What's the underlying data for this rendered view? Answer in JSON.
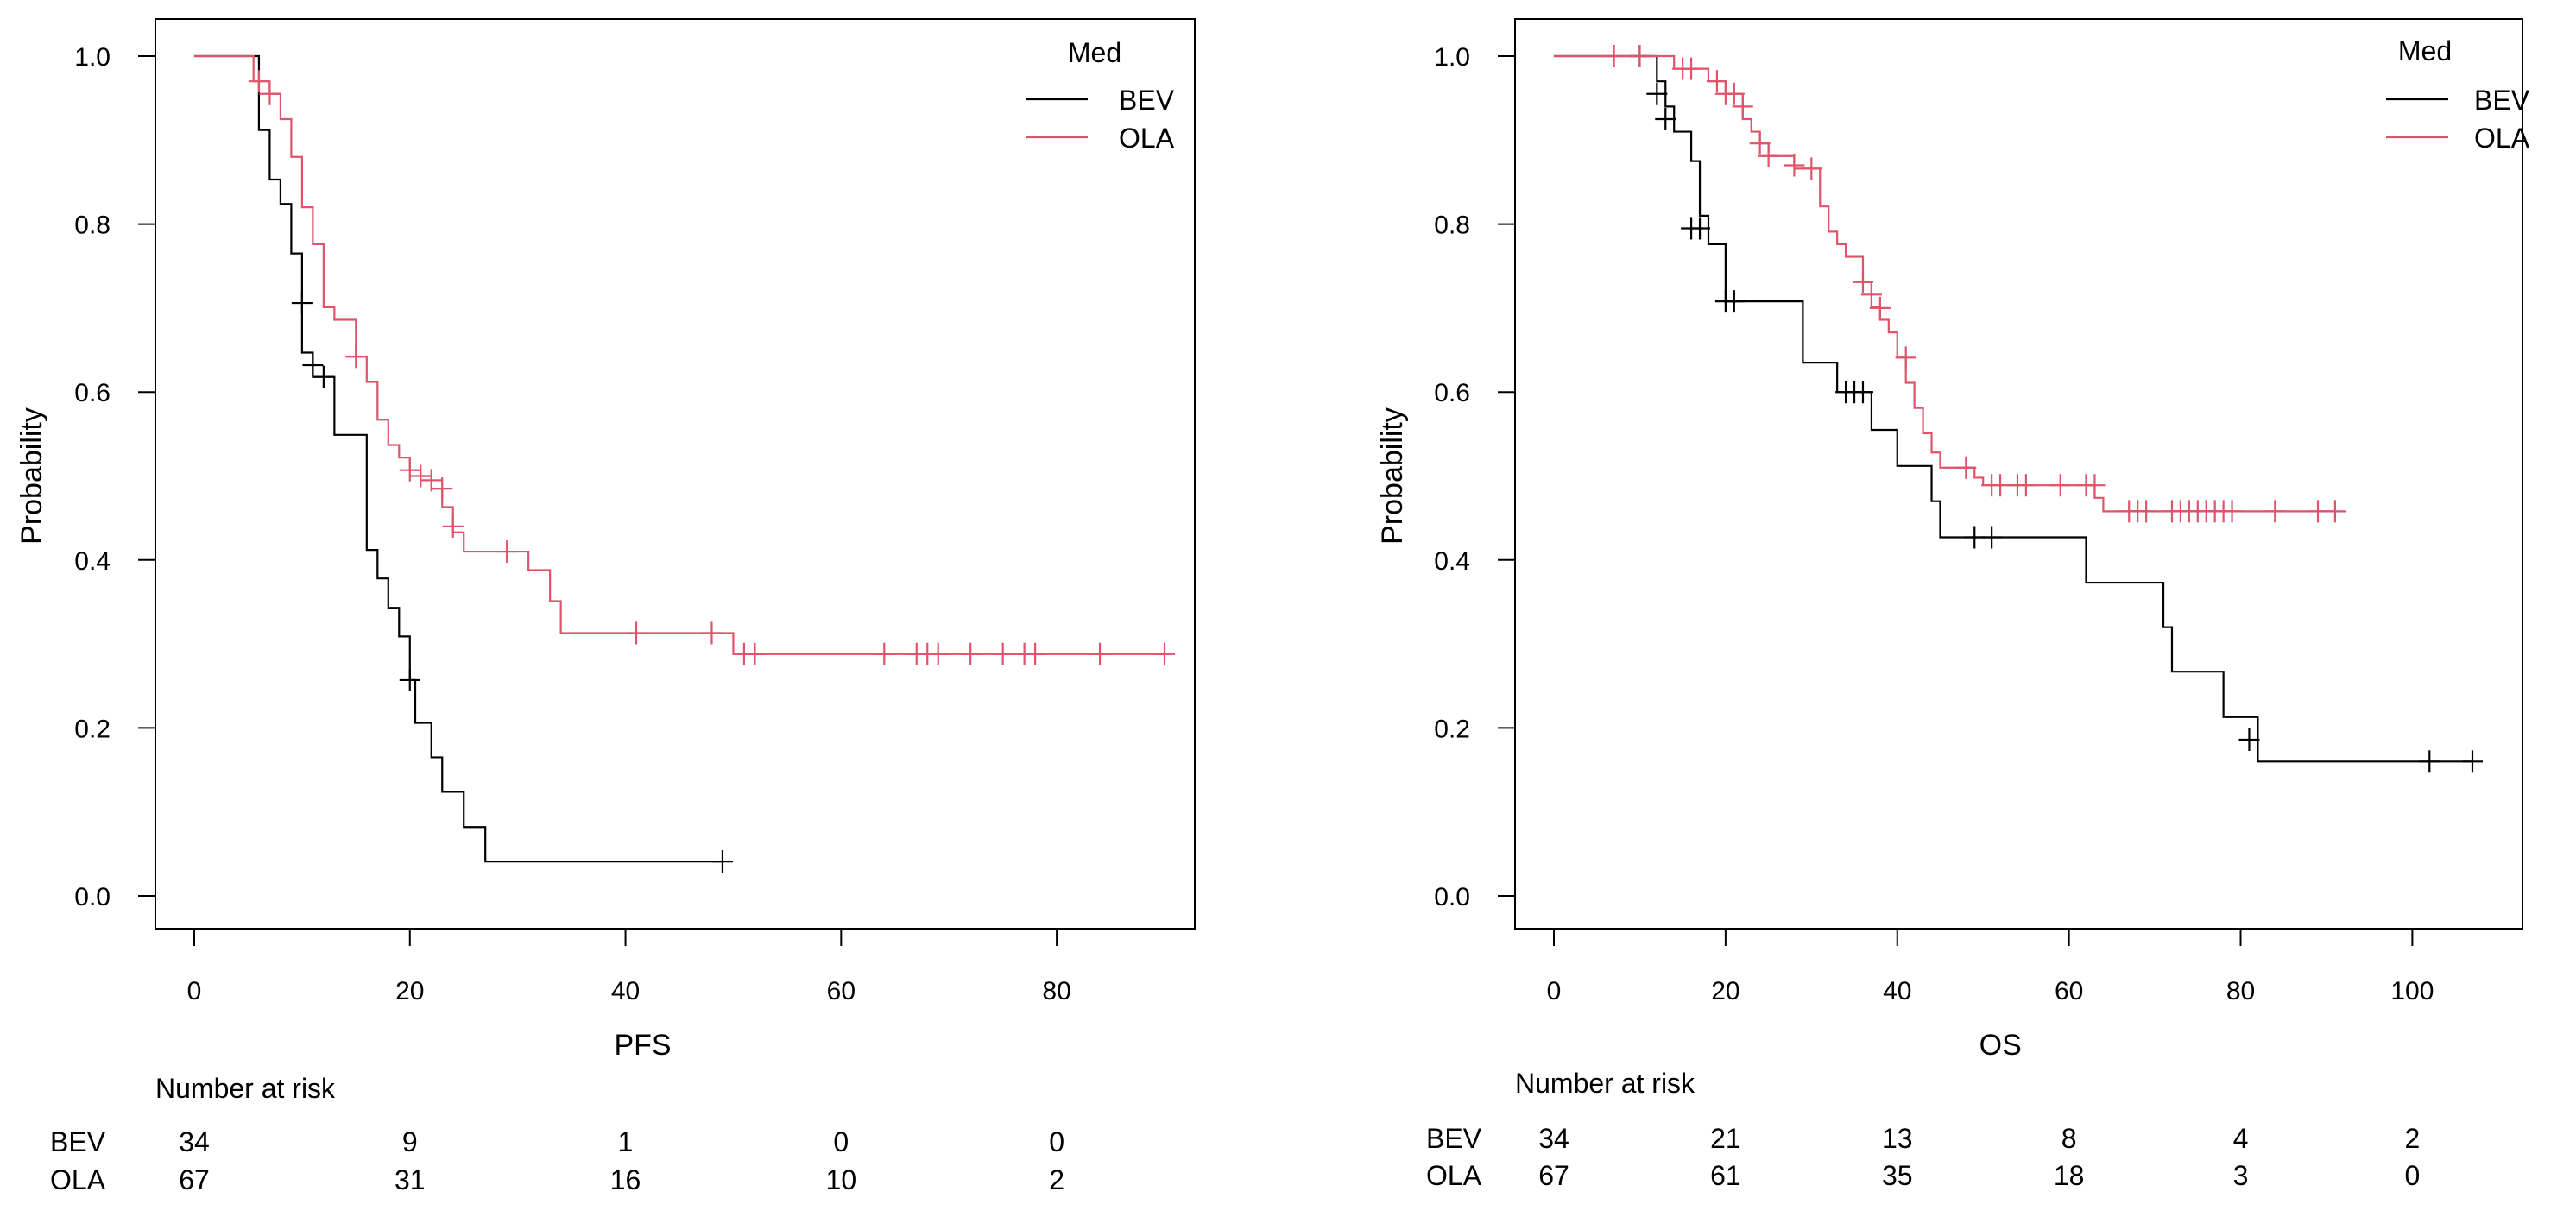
{
  "colors": {
    "BEV": "#000000",
    "OLA": "#DF536B"
  },
  "chart_data": [
    {
      "type": "line",
      "subtype": "kaplan-meier",
      "title": "",
      "xlabel": "PFS",
      "ylabel": "Probability",
      "xlim": [
        0,
        90
      ],
      "ylim": [
        0,
        1
      ],
      "xticks": [
        0,
        20,
        40,
        60,
        80
      ],
      "yticks": [
        0.0,
        0.2,
        0.4,
        0.6,
        0.8,
        1.0
      ],
      "xtick_labels": [
        "0",
        "20",
        "40",
        "60",
        "80"
      ],
      "ytick_labels": [
        "0.0",
        "0.2",
        "0.4",
        "0.6",
        "0.8",
        "1.0"
      ],
      "grid": false,
      "legend": {
        "title": "Med",
        "placement": "top-right"
      },
      "series": [
        {
          "name": "BEV",
          "steps": [
            [
              0,
              1.0
            ],
            [
              5.5,
              1.0
            ],
            [
              6,
              0.912
            ],
            [
              7,
              0.853
            ],
            [
              8,
              0.824
            ],
            [
              9,
              0.765
            ],
            [
              10,
              0.647
            ],
            [
              11,
              0.618
            ],
            [
              13,
              0.549
            ],
            [
              16,
              0.412
            ],
            [
              17,
              0.378
            ],
            [
              18,
              0.343
            ],
            [
              19,
              0.309
            ],
            [
              20,
              0.257
            ],
            [
              20.5,
              0.206
            ],
            [
              22,
              0.165
            ],
            [
              23,
              0.124
            ],
            [
              25,
              0.082
            ],
            [
              27,
              0.041
            ],
            [
              49,
              0.041
            ]
          ],
          "censor": [
            [
              10,
              0.706
            ],
            [
              11,
              0.632
            ],
            [
              12,
              0.618
            ],
            [
              20,
              0.257
            ],
            [
              49,
              0.041
            ]
          ]
        },
        {
          "name": "OLA",
          "steps": [
            [
              0,
              1.0
            ],
            [
              5,
              1.0
            ],
            [
              5.5,
              0.97
            ],
            [
              7,
              0.955
            ],
            [
              8,
              0.925
            ],
            [
              9,
              0.88
            ],
            [
              10,
              0.82
            ],
            [
              11,
              0.776
            ],
            [
              12,
              0.701
            ],
            [
              13,
              0.686
            ],
            [
              15,
              0.642
            ],
            [
              16,
              0.612
            ],
            [
              17,
              0.567
            ],
            [
              18,
              0.537
            ],
            [
              19,
              0.522
            ],
            [
              20,
              0.507
            ],
            [
              21,
              0.5
            ],
            [
              22,
              0.485
            ],
            [
              23,
              0.463
            ],
            [
              24,
              0.433
            ],
            [
              25,
              0.41
            ],
            [
              30,
              0.41
            ],
            [
              31,
              0.388
            ],
            [
              33,
              0.351
            ],
            [
              34,
              0.313
            ],
            [
              50,
              0.288
            ],
            [
              90,
              0.288
            ]
          ],
          "censor": [
            [
              6,
              0.97
            ],
            [
              7,
              0.955
            ],
            [
              15,
              0.642
            ],
            [
              20,
              0.507
            ],
            [
              21,
              0.5
            ],
            [
              22,
              0.495
            ],
            [
              23,
              0.485
            ],
            [
              24,
              0.44
            ],
            [
              29,
              0.41
            ],
            [
              41,
              0.313
            ],
            [
              48,
              0.313
            ],
            [
              51,
              0.288
            ],
            [
              52,
              0.288
            ],
            [
              64,
              0.288
            ],
            [
              67,
              0.288
            ],
            [
              68,
              0.288
            ],
            [
              69,
              0.288
            ],
            [
              72,
              0.288
            ],
            [
              75,
              0.288
            ],
            [
              77,
              0.288
            ],
            [
              78,
              0.288
            ],
            [
              84,
              0.288
            ],
            [
              90,
              0.288
            ]
          ]
        }
      ],
      "risk_table": {
        "title": "Number at risk",
        "times": [
          0,
          20,
          40,
          60,
          80
        ],
        "rows": [
          {
            "name": "BEV",
            "values": [
              "34",
              "9",
              "1",
              "0",
              "0"
            ]
          },
          {
            "name": "OLA",
            "values": [
              "67",
              "31",
              "16",
              "10",
              "2"
            ]
          }
        ]
      }
    },
    {
      "type": "line",
      "subtype": "kaplan-meier",
      "title": "",
      "xlabel": "OS",
      "ylabel": "Probability",
      "xlim": [
        0,
        107
      ],
      "ylim": [
        0,
        1
      ],
      "xticks": [
        0,
        20,
        40,
        60,
        80,
        100
      ],
      "yticks": [
        0.0,
        0.2,
        0.4,
        0.6,
        0.8,
        1.0
      ],
      "xtick_labels": [
        "0",
        "20",
        "40",
        "60",
        "80",
        "100"
      ],
      "ytick_labels": [
        "0.0",
        "0.2",
        "0.4",
        "0.6",
        "0.8",
        "1.0"
      ],
      "grid": false,
      "legend": {
        "title": "Med",
        "placement": "top-right"
      },
      "series": [
        {
          "name": "BEV",
          "steps": [
            [
              0,
              1.0
            ],
            [
              11,
              1.0
            ],
            [
              12,
              0.97
            ],
            [
              13,
              0.94
            ],
            [
              14,
              0.91
            ],
            [
              16,
              0.875
            ],
            [
              17,
              0.81
            ],
            [
              18,
              0.776
            ],
            [
              20,
              0.708
            ],
            [
              29,
              0.635
            ],
            [
              33,
              0.6
            ],
            [
              37,
              0.555
            ],
            [
              40,
              0.512
            ],
            [
              44,
              0.47
            ],
            [
              45,
              0.427
            ],
            [
              62,
              0.373
            ],
            [
              71,
              0.32
            ],
            [
              72,
              0.267
            ],
            [
              78,
              0.213
            ],
            [
              82,
              0.16
            ],
            [
              107,
              0.16
            ]
          ],
          "censor": [
            [
              10,
              1.0
            ],
            [
              12,
              0.955
            ],
            [
              13,
              0.925
            ],
            [
              16,
              0.795
            ],
            [
              17,
              0.795
            ],
            [
              20,
              0.708
            ],
            [
              21,
              0.708
            ],
            [
              34,
              0.6
            ],
            [
              35,
              0.6
            ],
            [
              36,
              0.6
            ],
            [
              49,
              0.427
            ],
            [
              51,
              0.427
            ],
            [
              81,
              0.186
            ],
            [
              102,
              0.16
            ],
            [
              107,
              0.16
            ]
          ]
        },
        {
          "name": "OLA",
          "steps": [
            [
              0,
              1.0
            ],
            [
              12,
              1.0
            ],
            [
              14,
              0.985
            ],
            [
              18,
              0.97
            ],
            [
              20,
              0.955
            ],
            [
              22,
              0.925
            ],
            [
              23,
              0.91
            ],
            [
              24,
              0.896
            ],
            [
              25,
              0.881
            ],
            [
              28,
              0.866
            ],
            [
              31,
              0.821
            ],
            [
              32,
              0.791
            ],
            [
              33,
              0.776
            ],
            [
              34,
              0.761
            ],
            [
              36,
              0.731
            ],
            [
              37,
              0.701
            ],
            [
              38,
              0.686
            ],
            [
              39,
              0.671
            ],
            [
              40,
              0.641
            ],
            [
              41,
              0.611
            ],
            [
              42,
              0.581
            ],
            [
              43,
              0.551
            ],
            [
              44,
              0.528
            ],
            [
              45,
              0.51
            ],
            [
              49,
              0.498
            ],
            [
              50,
              0.489
            ],
            [
              63,
              0.474
            ],
            [
              64,
              0.458
            ],
            [
              91,
              0.458
            ]
          ],
          "censor": [
            [
              7,
              1.0
            ],
            [
              10,
              1.0
            ],
            [
              15,
              0.985
            ],
            [
              16,
              0.985
            ],
            [
              19,
              0.97
            ],
            [
              20,
              0.955
            ],
            [
              21,
              0.955
            ],
            [
              22,
              0.94
            ],
            [
              24,
              0.896
            ],
            [
              25,
              0.881
            ],
            [
              28,
              0.87
            ],
            [
              30,
              0.866
            ],
            [
              36,
              0.731
            ],
            [
              37,
              0.716
            ],
            [
              38,
              0.7
            ],
            [
              41,
              0.641
            ],
            [
              48,
              0.51
            ],
            [
              51,
              0.489
            ],
            [
              52,
              0.489
            ],
            [
              54,
              0.489
            ],
            [
              55,
              0.489
            ],
            [
              59,
              0.489
            ],
            [
              62,
              0.489
            ],
            [
              63,
              0.489
            ],
            [
              67,
              0.458
            ],
            [
              68,
              0.458
            ],
            [
              69,
              0.458
            ],
            [
              72,
              0.458
            ],
            [
              73,
              0.458
            ],
            [
              74,
              0.458
            ],
            [
              75,
              0.458
            ],
            [
              76,
              0.458
            ],
            [
              77,
              0.458
            ],
            [
              78,
              0.458
            ],
            [
              79,
              0.458
            ],
            [
              84,
              0.458
            ],
            [
              89,
              0.458
            ],
            [
              91,
              0.458
            ]
          ]
        }
      ],
      "risk_table": {
        "title": "Number at risk",
        "times": [
          0,
          20,
          40,
          60,
          80,
          100
        ],
        "rows": [
          {
            "name": "BEV",
            "values": [
              "34",
              "21",
              "13",
              "8",
              "4",
              "2"
            ]
          },
          {
            "name": "OLA",
            "values": [
              "67",
              "61",
              "35",
              "18",
              "3",
              "0"
            ]
          }
        ]
      }
    }
  ]
}
